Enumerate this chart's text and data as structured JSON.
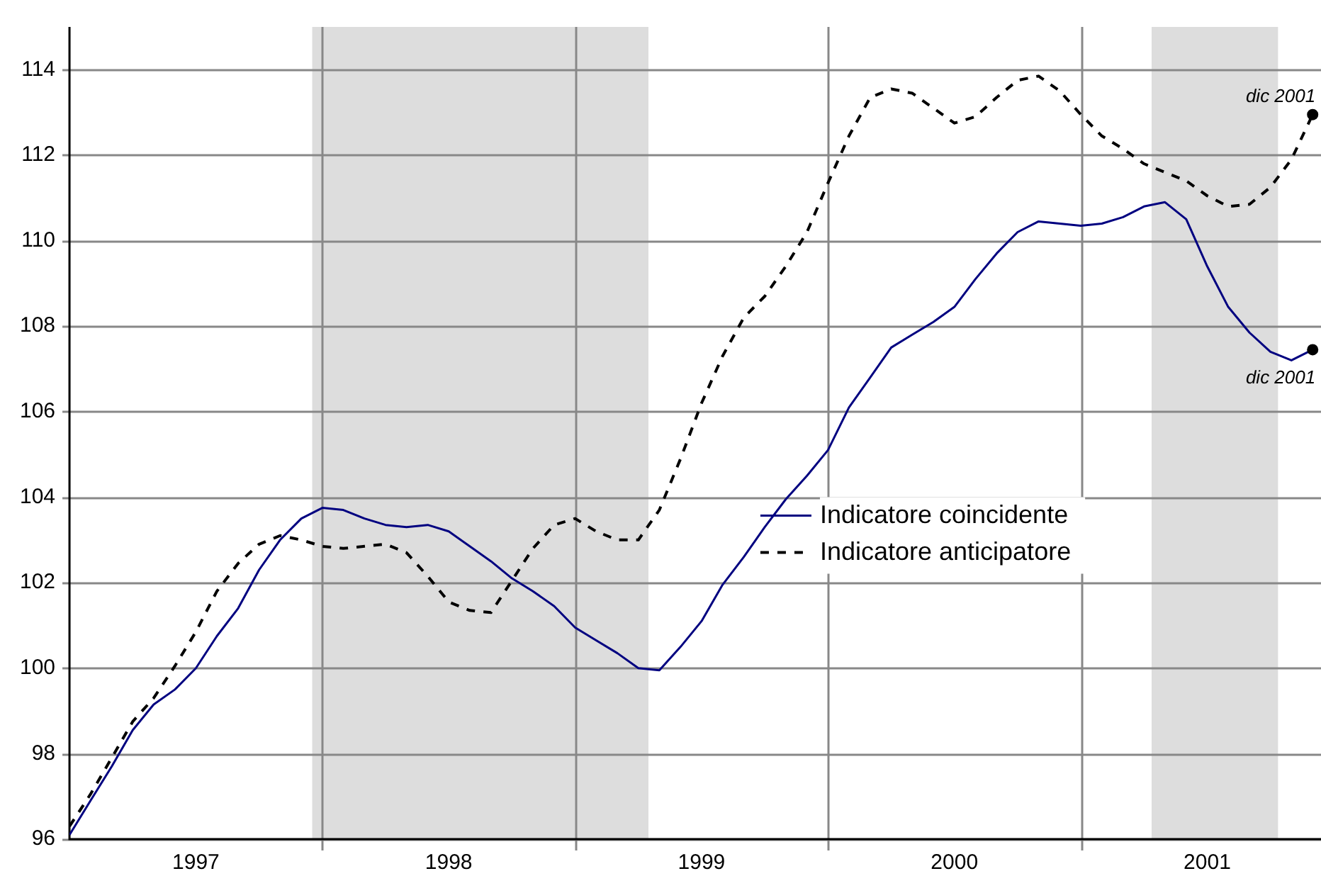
{
  "chart_data": {
    "type": "line",
    "x": [
      1997,
      1997.083,
      1997.167,
      1997.25,
      1997.333,
      1997.417,
      1997.5,
      1997.583,
      1997.667,
      1997.75,
      1997.833,
      1997.917,
      1998,
      1998.083,
      1998.167,
      1998.25,
      1998.333,
      1998.417,
      1998.5,
      1998.583,
      1998.667,
      1998.75,
      1998.833,
      1998.917,
      1999,
      1999.083,
      1999.167,
      1999.25,
      1999.333,
      1999.417,
      1999.5,
      1999.583,
      1999.667,
      1999.75,
      1999.833,
      1999.917,
      2000,
      2000.083,
      2000.167,
      2000.25,
      2000.333,
      2000.417,
      2000.5,
      2000.583,
      2000.667,
      2000.75,
      2000.833,
      2000.917,
      2001,
      2001.083,
      2001.167,
      2001.25,
      2001.333,
      2001.417,
      2001.5,
      2001.583,
      2001.667,
      2001.75,
      2001.833,
      2001.917
    ],
    "series": [
      {
        "name": "Indicatore coincidente",
        "color": "#000080",
        "line_style": "solid",
        "values": [
          96.1,
          96.9,
          97.7,
          98.55,
          99.15,
          99.5,
          100.0,
          100.75,
          101.4,
          102.3,
          103.0,
          103.5,
          103.75,
          103.7,
          103.5,
          103.35,
          103.3,
          103.35,
          103.2,
          102.85,
          102.5,
          102.1,
          101.8,
          101.45,
          100.95,
          100.65,
          100.35,
          100.0,
          99.95,
          100.5,
          101.1,
          101.95,
          102.6,
          103.3,
          103.95,
          104.5,
          105.1,
          106.1,
          106.8,
          107.5,
          107.8,
          108.1,
          108.45,
          109.1,
          109.7,
          110.2,
          110.45,
          110.4,
          110.35,
          110.4,
          110.55,
          110.8,
          110.9,
          110.5,
          109.4,
          108.45,
          107.85,
          107.4,
          107.2,
          107.45
        ]
      },
      {
        "name": "Indicatore anticipatore",
        "color": "#000000",
        "line_style": "dashed",
        "values": [
          96.3,
          97.05,
          97.9,
          98.75,
          99.3,
          100.05,
          100.85,
          101.8,
          102.45,
          102.9,
          103.1,
          103.0,
          102.85,
          102.8,
          102.85,
          102.9,
          102.7,
          102.15,
          101.55,
          101.35,
          101.3,
          102.05,
          102.8,
          103.35,
          103.5,
          103.2,
          103.0,
          103.0,
          103.7,
          104.9,
          106.2,
          107.3,
          108.2,
          108.7,
          109.4,
          110.2,
          111.35,
          112.45,
          113.35,
          113.55,
          113.45,
          113.1,
          112.75,
          112.9,
          113.35,
          113.75,
          113.85,
          113.5,
          112.95,
          112.45,
          112.15,
          111.8,
          111.6,
          111.4,
          111.05,
          110.8,
          110.85,
          111.25,
          111.9,
          112.95
        ]
      }
    ],
    "xlim": [
      1997,
      2001.95
    ],
    "xticks": [
      {
        "value": 1997.5,
        "label": "1997"
      },
      {
        "value": 1998,
        "label": null
      },
      {
        "value": 1998.5,
        "label": "1998"
      },
      {
        "value": 1999,
        "label": null
      },
      {
        "value": 1999.5,
        "label": "1999"
      },
      {
        "value": 2000,
        "label": null
      },
      {
        "value": 2000.5,
        "label": "2000"
      },
      {
        "value": 2001,
        "label": null
      },
      {
        "value": 2001.5,
        "label": "2001"
      }
    ],
    "ylim": [
      96,
      115
    ],
    "yticks": [
      96,
      98,
      100,
      102,
      104,
      106,
      108,
      110,
      112,
      114
    ],
    "bands": [
      {
        "axis": "x",
        "from": 1997.96,
        "to": 1999.29,
        "color": "#dddddd"
      },
      {
        "axis": "x",
        "from": 2001.28,
        "to": 2001.78,
        "color": "#dddddd"
      }
    ],
    "annotations": [
      {
        "text": "dic 2001",
        "x": 2001.917,
        "y": 112.95
      },
      {
        "text": "dic 2001",
        "x": 2001.917,
        "y": 107.45
      }
    ],
    "grid": true,
    "legend": "right",
    "marker": "none"
  }
}
